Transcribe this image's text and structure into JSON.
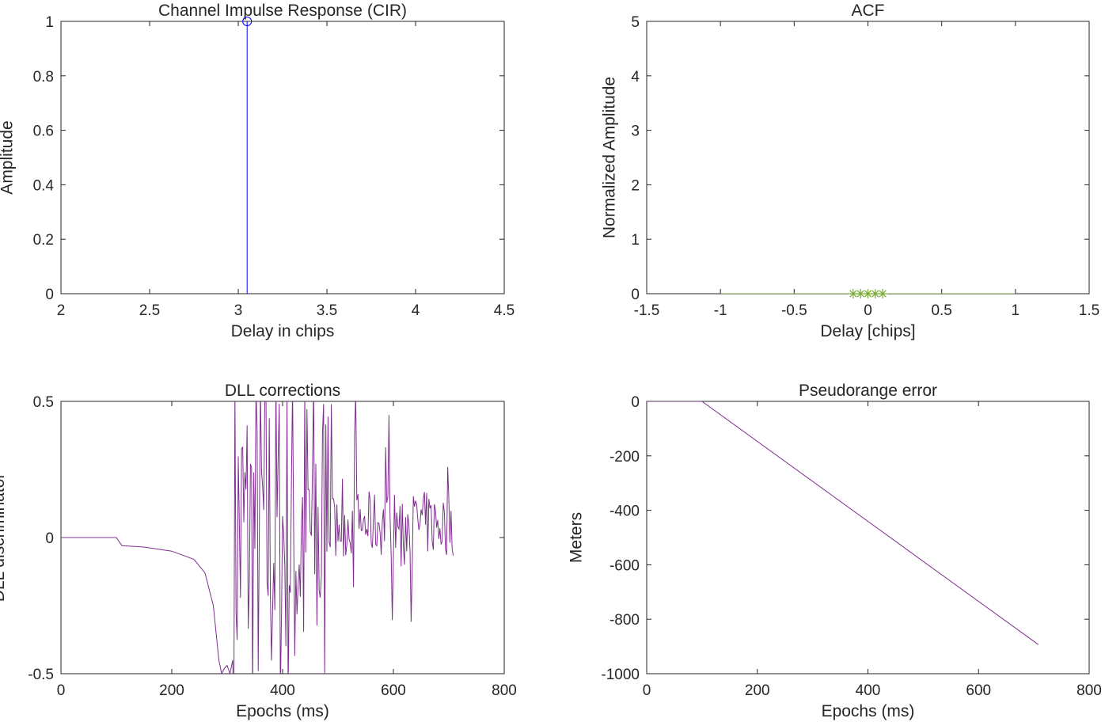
{
  "chart_data": [
    {
      "id": "cir",
      "type": "stem",
      "title": "Channel Impulse Response (CIR)",
      "xlabel": "Delay in chips",
      "ylabel": "Amplitude",
      "xlim": [
        2,
        4.5
      ],
      "ylim": [
        0,
        1
      ],
      "xticks": [
        2,
        2.5,
        3,
        3.5,
        4,
        4.5
      ],
      "xtick_labels": [
        "2",
        "2.5",
        "3",
        "3.5",
        "4",
        "4.5"
      ],
      "yticks": [
        0,
        0.2,
        0.4,
        0.6,
        0.8,
        1
      ],
      "ytick_labels": [
        "0",
        "0.2",
        "0.4",
        "0.6",
        "0.8",
        "1"
      ],
      "color": "#0000ff",
      "series": [
        {
          "x": [
            3.05
          ],
          "y": [
            1
          ]
        }
      ]
    },
    {
      "id": "acf",
      "type": "line",
      "title": "ACF",
      "xlabel": "Delay [chips]",
      "ylabel": "Normalized Amplitude",
      "xlim": [
        -1.5,
        1.5
      ],
      "ylim": [
        0,
        5
      ],
      "xticks": [
        -1.5,
        -1,
        -0.5,
        0,
        0.5,
        1,
        1.5
      ],
      "xtick_labels": [
        "-1.5",
        "-1",
        "-0.5",
        "0",
        "0.5",
        "1",
        "1.5"
      ],
      "yticks": [
        0,
        1,
        2,
        3,
        4,
        5
      ],
      "ytick_labels": [
        "0",
        "1",
        "2",
        "3",
        "4",
        "5"
      ],
      "color": "#77ac30",
      "series": [
        {
          "x": [
            -1,
            -0.1,
            -0.05,
            0,
            0.05,
            0.1,
            1
          ],
          "y": [
            0,
            0,
            0,
            0,
            0,
            0,
            0
          ]
        }
      ],
      "markers": {
        "symbol": "asterisk",
        "x": [
          -0.1,
          -0.05,
          0,
          0.05,
          0.1
        ],
        "y": [
          0,
          0,
          0,
          0,
          0
        ]
      }
    },
    {
      "id": "dll",
      "type": "line",
      "title": "DLL corrections",
      "xlabel": "Epochs (ms)",
      "ylabel": "DLL discriminator",
      "xlim": [
        0,
        800
      ],
      "ylim": [
        -0.5,
        0.5
      ],
      "xticks": [
        0,
        200,
        400,
        600,
        800
      ],
      "xtick_labels": [
        "0",
        "200",
        "400",
        "600",
        "800"
      ],
      "yticks": [
        -0.5,
        0,
        0.5
      ],
      "ytick_labels": [
        "-0.5",
        "0",
        "0.5"
      ],
      "color": "#7e2f8e",
      "series": [
        {
          "x": [
            0,
            100,
            110,
            150,
            200,
            240,
            260,
            275,
            285,
            290,
            295,
            300,
            305,
            310
          ],
          "y": [
            0,
            0,
            -0.03,
            -0.035,
            -0.05,
            -0.08,
            -0.13,
            -0.25,
            -0.45,
            -0.5,
            -0.48,
            -0.47,
            -0.5,
            -0.45
          ]
        }
      ],
      "noise": {
        "x_start": 312,
        "x_end": 708,
        "min": -0.5,
        "max": 0.5,
        "late_start": 480,
        "late_center": 0.05,
        "late_amp": 0.12
      }
    },
    {
      "id": "pr",
      "type": "line",
      "title": "Pseudorange error",
      "xlabel": "Epochs (ms)",
      "ylabel": "Meters",
      "xlim": [
        0,
        800
      ],
      "ylim": [
        -1000,
        0
      ],
      "xticks": [
        0,
        200,
        400,
        600,
        800
      ],
      "xtick_labels": [
        "0",
        "200",
        "400",
        "600",
        "800"
      ],
      "yticks": [
        -1000,
        -800,
        -600,
        -400,
        -200,
        0
      ],
      "ytick_labels": [
        "-1000",
        "-800",
        "-600",
        "-400",
        "-200",
        "0"
      ],
      "color": "#7e2f8e",
      "series": [
        {
          "x": [
            0,
            100,
            708
          ],
          "y": [
            0,
            0,
            -893
          ]
        }
      ]
    }
  ]
}
